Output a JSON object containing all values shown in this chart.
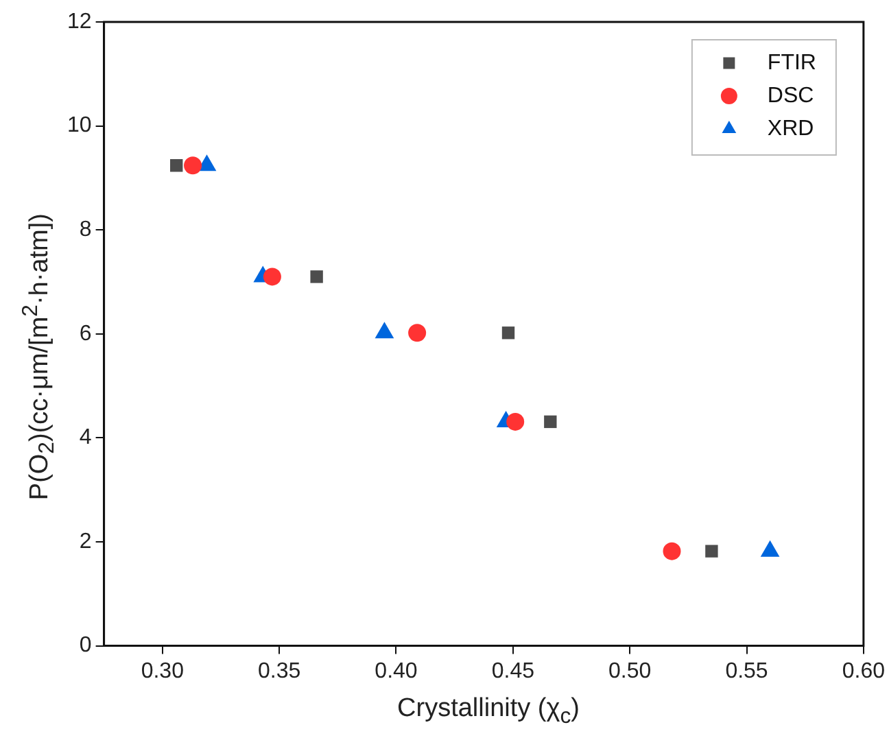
{
  "chart_data": {
    "type": "scatter",
    "xlabel": "Crystallinity (χ$_{c}$)",
    "ylabel": "P(O$_{2}$)(cc·μm/[m$^{2}$·h·atm])",
    "xlim": [
      0.275,
      0.6
    ],
    "xticks": [
      {
        "value": 0.3,
        "label": "0.30"
      },
      0.35,
      {
        "value": 0.4,
        "label": "0.40"
      },
      0.45,
      {
        "value": 0.5,
        "label": "0.50"
      },
      0.55,
      {
        "value": 0.6,
        "label": "0.60"
      }
    ],
    "ylim": [
      0,
      12
    ],
    "yticks": [
      0,
      2,
      4,
      6,
      8,
      10,
      12
    ],
    "grid": false,
    "legend": "top right",
    "series": [
      {
        "name": "FTIR",
        "color": "#4d4d4d",
        "marker": "square",
        "x": [
          0.306,
          0.366,
          0.448,
          0.466,
          0.535
        ],
        "values": [
          9.24,
          7.1,
          6.02,
          4.31,
          1.82
        ]
      },
      {
        "name": "DSC",
        "color": "#ff3333",
        "marker": "circle",
        "x": [
          0.313,
          0.347,
          0.409,
          0.451,
          0.518
        ],
        "values": [
          9.24,
          7.1,
          6.02,
          4.31,
          1.82
        ]
      },
      {
        "name": "XRD",
        "color": "#0066dd",
        "marker": "triangle",
        "x": [
          0.319,
          0.343,
          0.395,
          0.447,
          0.56
        ],
        "values": [
          9.24,
          7.1,
          6.02,
          4.31,
          1.82
        ]
      }
    ]
  }
}
